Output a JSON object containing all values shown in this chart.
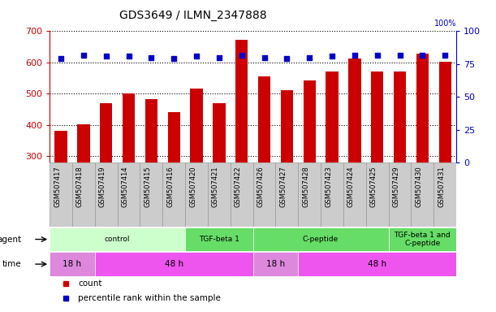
{
  "title": "GDS3649 / ILMN_2347888",
  "samples": [
    "GSM507417",
    "GSM507418",
    "GSM507419",
    "GSM507414",
    "GSM507415",
    "GSM507416",
    "GSM507420",
    "GSM507421",
    "GSM507422",
    "GSM507426",
    "GSM507427",
    "GSM507428",
    "GSM507423",
    "GSM507424",
    "GSM507425",
    "GSM507429",
    "GSM507430",
    "GSM507431"
  ],
  "counts": [
    382,
    402,
    470,
    500,
    484,
    441,
    518,
    470,
    672,
    556,
    511,
    542,
    572,
    614,
    572,
    572,
    628,
    603
  ],
  "percentiles": [
    79,
    82,
    81,
    81,
    80,
    79,
    81,
    80,
    82,
    80,
    79,
    80,
    81,
    82,
    82,
    82,
    82,
    82
  ],
  "ylim_left": [
    280,
    700
  ],
  "ylim_right": [
    0,
    100
  ],
  "yticks_left": [
    300,
    400,
    500,
    600,
    700
  ],
  "yticks_right": [
    0,
    25,
    50,
    75,
    100
  ],
  "bar_color": "#cc0000",
  "dot_color": "#0000cc",
  "bar_bottom": 280,
  "agent_groups": [
    {
      "label": "control",
      "start": 0,
      "end": 6,
      "color": "#ccffcc"
    },
    {
      "label": "TGF-beta 1",
      "start": 6,
      "end": 9,
      "color": "#66dd66"
    },
    {
      "label": "C-peptide",
      "start": 9,
      "end": 15,
      "color": "#66dd66"
    },
    {
      "label": "TGF-beta 1 and\nC-peptide",
      "start": 15,
      "end": 18,
      "color": "#66dd66"
    }
  ],
  "time_groups": [
    {
      "label": "18 h",
      "start": 0,
      "end": 2,
      "color": "#dd88dd"
    },
    {
      "label": "48 h",
      "start": 2,
      "end": 9,
      "color": "#ee55ee"
    },
    {
      "label": "18 h",
      "start": 9,
      "end": 11,
      "color": "#dd88dd"
    },
    {
      "label": "48 h",
      "start": 11,
      "end": 18,
      "color": "#ee55ee"
    }
  ],
  "tick_color_left": "#cc0000",
  "tick_color_right": "#0000cc",
  "xticklabel_bg": "#cccccc",
  "xticklabel_border": "#999999",
  "legend_items": [
    {
      "label": "count",
      "color": "#cc0000"
    },
    {
      "label": "percentile rank within the sample",
      "color": "#0000cc"
    }
  ]
}
